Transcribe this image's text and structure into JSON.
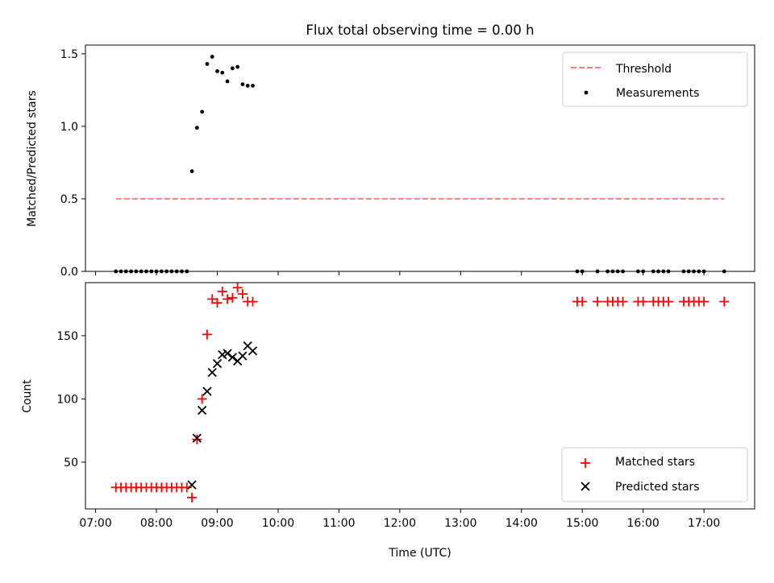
{
  "title": "Flux total observing time = 0.00 h",
  "colors": {
    "threshold": "#ff7f7f",
    "measurements": "#000000",
    "matched": "#ff0000",
    "predicted": "#000000"
  },
  "chart_data": [
    {
      "type": "scatter",
      "title": "Flux total observing time = 0.00 h",
      "xlabel": "",
      "ylabel": "Matched/Predicted stars",
      "xlim": [
        "06:50",
        "17:50"
      ],
      "ylim": [
        0,
        1.56
      ],
      "yticks": [
        "0.0",
        "0.5",
        "1.0",
        "1.5"
      ],
      "legend_position": "top-right",
      "series": [
        {
          "name": "Threshold",
          "style": "dashed-line",
          "x": [
            "07:20",
            "17:20"
          ],
          "y": [
            0.5,
            0.5
          ]
        },
        {
          "name": "Measurements",
          "style": "dot",
          "x": [
            "07:20",
            "07:25",
            "07:30",
            "07:35",
            "07:40",
            "07:45",
            "07:50",
            "07:55",
            "08:00",
            "08:05",
            "08:10",
            "08:15",
            "08:20",
            "08:25",
            "08:30",
            "08:35",
            "08:40",
            "08:45",
            "08:50",
            "08:55",
            "09:00",
            "09:05",
            "09:10",
            "09:15",
            "09:20",
            "09:25",
            "09:30",
            "09:35",
            "14:55",
            "15:00",
            "15:15",
            "15:25",
            "15:30",
            "15:35",
            "15:40",
            "15:55",
            "16:00",
            "16:10",
            "16:15",
            "16:20",
            "16:25",
            "16:40",
            "16:45",
            "16:50",
            "16:55",
            "17:00",
            "17:20"
          ],
          "y": [
            0,
            0,
            0,
            0,
            0,
            0,
            0,
            0,
            0,
            0,
            0,
            0,
            0,
            0,
            0,
            0.69,
            0.99,
            1.1,
            1.43,
            1.48,
            1.38,
            1.37,
            1.31,
            1.4,
            1.41,
            1.29,
            1.28,
            1.28,
            0,
            0,
            0,
            0,
            0,
            0,
            0,
            0,
            0,
            0,
            0,
            0,
            0,
            0,
            0,
            0,
            0,
            0,
            0
          ]
        }
      ]
    },
    {
      "type": "scatter",
      "title": "",
      "xlabel": "Time (UTC)",
      "ylabel": "Count",
      "xlim": [
        "06:50",
        "17:50"
      ],
      "ylim": [
        13,
        192
      ],
      "yticks": [
        "50",
        "100",
        "150"
      ],
      "xticks": [
        "07:00",
        "08:00",
        "09:00",
        "10:00",
        "11:00",
        "12:00",
        "13:00",
        "14:00",
        "15:00",
        "16:00",
        "17:00"
      ],
      "legend_position": "bottom-right",
      "series": [
        {
          "name": "Matched stars",
          "marker": "plus",
          "x": [
            "07:20",
            "07:25",
            "07:30",
            "07:35",
            "07:40",
            "07:45",
            "07:50",
            "07:55",
            "08:00",
            "08:05",
            "08:10",
            "08:15",
            "08:20",
            "08:25",
            "08:30",
            "08:35",
            "08:40",
            "08:45",
            "08:50",
            "08:55",
            "09:00",
            "09:05",
            "09:10",
            "09:15",
            "09:20",
            "09:25",
            "09:30",
            "09:35",
            "14:55",
            "15:00",
            "15:15",
            "15:25",
            "15:30",
            "15:35",
            "15:40",
            "15:55",
            "16:00",
            "16:10",
            "16:15",
            "16:20",
            "16:25",
            "16:40",
            "16:45",
            "16:50",
            "16:55",
            "17:00",
            "17:20"
          ],
          "y": [
            30,
            30,
            30,
            30,
            30,
            30,
            30,
            30,
            30,
            30,
            30,
            30,
            30,
            30,
            30,
            22,
            68,
            100,
            151,
            179,
            176,
            185,
            179,
            180,
            188,
            183,
            177,
            177,
            177,
            177,
            177,
            177,
            177,
            177,
            177,
            177,
            177,
            177,
            177,
            177,
            177,
            177,
            177,
            177,
            177,
            177,
            177
          ]
        },
        {
          "name": "Predicted stars",
          "marker": "x",
          "x": [
            "08:35",
            "08:40",
            "08:45",
            "08:50",
            "08:55",
            "09:00",
            "09:05",
            "09:10",
            "09:15",
            "09:20",
            "09:25",
            "09:30",
            "09:35"
          ],
          "y": [
            32,
            69,
            91,
            106,
            121,
            128,
            135,
            136,
            133,
            130,
            134,
            142,
            138
          ]
        }
      ]
    }
  ]
}
